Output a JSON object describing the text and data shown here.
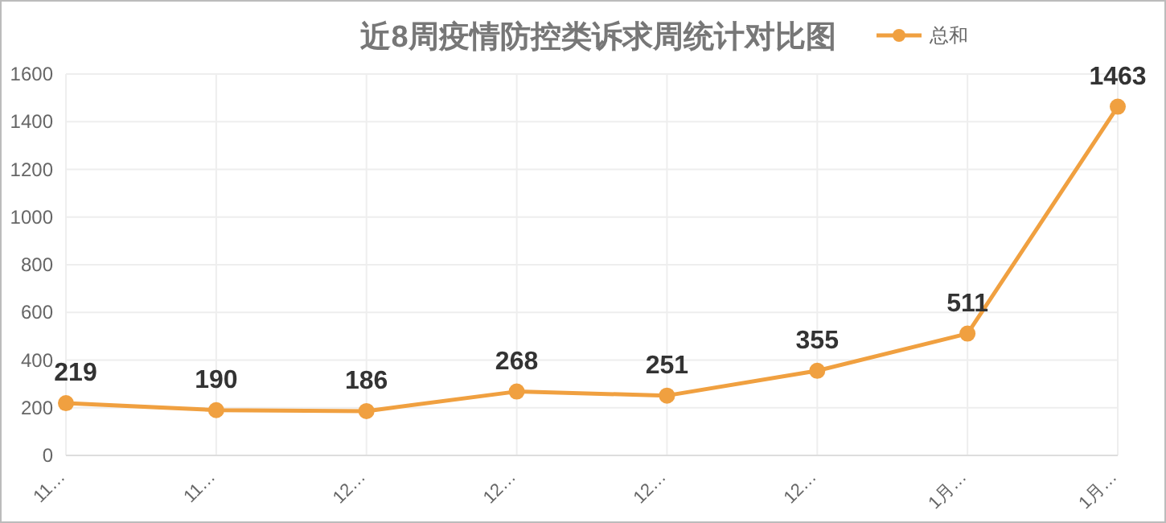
{
  "chart_data": {
    "type": "line",
    "title": "近8周疫情防控类诉求周统计对比图",
    "categories": [
      "11…",
      "11…",
      "12…",
      "12…",
      "12…",
      "12…",
      "1月…",
      "1月…"
    ],
    "series": [
      {
        "name": "总和",
        "color": "#f0a040",
        "values": [
          219,
          190,
          186,
          268,
          251,
          355,
          511,
          1463
        ]
      }
    ],
    "ylim": [
      0,
      1600
    ],
    "yticks": [
      0,
      200,
      400,
      600,
      800,
      1000,
      1200,
      1400,
      1600
    ],
    "grid": true,
    "legend": "top right",
    "marker": "circle",
    "line_style": "solid",
    "data_labels": true
  }
}
